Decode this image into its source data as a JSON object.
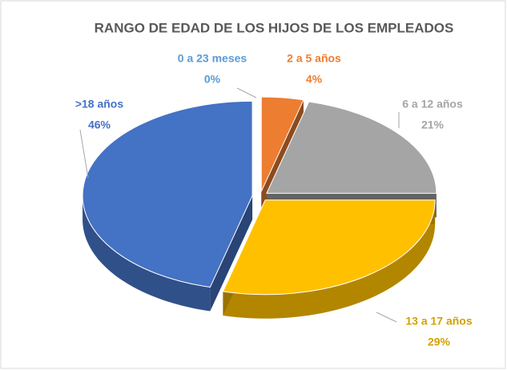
{
  "chart_data": {
    "type": "pie",
    "title": "RANGO DE EDAD DE LOS HIJOS DE LOS EMPLEADOS",
    "categories": [
      "0 a 23 meses",
      "2 a 5 años",
      "6 a 12 años",
      "13 a 17 años",
      ">18 años"
    ],
    "values": [
      0,
      4,
      21,
      29,
      46
    ],
    "value_labels": [
      "0%",
      "4%",
      "21%",
      "29%",
      "46%"
    ],
    "colors": [
      "#5b9bd5",
      "#ed7d31",
      "#a5a5a5",
      "#ffc000",
      "#4472c4"
    ]
  }
}
